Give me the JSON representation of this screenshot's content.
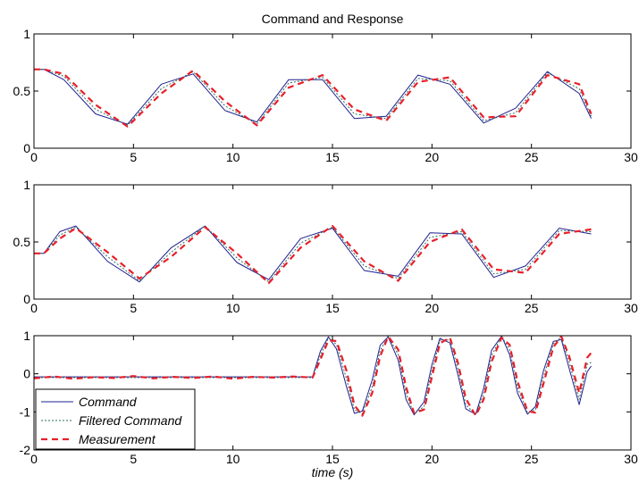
{
  "chart_data": [
    {
      "type": "line",
      "title": "Command and Response",
      "xlim": [
        0,
        30
      ],
      "ylim": [
        0,
        1
      ],
      "xticks": [
        0,
        5,
        10,
        15,
        20,
        25,
        30
      ],
      "yticks": [
        0,
        0.5,
        1
      ],
      "x_tick_labels": [
        "0",
        "5",
        "10",
        "15",
        "20",
        "25",
        "30"
      ],
      "y_tick_labels": [
        "0",
        "0.5",
        "1"
      ],
      "grid": false,
      "series": [
        {
          "name": "Command",
          "color": "#1f1f8f",
          "style": "solid",
          "x": [
            0,
            0.5,
            1.5,
            3.1,
            4.7,
            6.4,
            8.0,
            9.6,
            11.2,
            12.8,
            14.5,
            16.1,
            17.7,
            19.3,
            20.9,
            22.6,
            24.2,
            25.8,
            27.4,
            28
          ],
          "y": [
            0.69,
            0.69,
            0.6,
            0.3,
            0.21,
            0.56,
            0.65,
            0.33,
            0.23,
            0.6,
            0.6,
            0.26,
            0.28,
            0.64,
            0.56,
            0.22,
            0.35,
            0.67,
            0.48,
            0.26
          ]
        },
        {
          "name": "Filtered Command",
          "color": "#2e6b5e",
          "style": "dotted",
          "x": [
            0,
            0.5,
            1.5,
            3.1,
            4.7,
            6.4,
            8.0,
            9.6,
            11.2,
            12.8,
            14.5,
            16.1,
            17.7,
            19.3,
            20.9,
            22.6,
            24.2,
            25.8,
            27.4,
            28
          ],
          "y": [
            0.69,
            0.69,
            0.63,
            0.34,
            0.2,
            0.52,
            0.67,
            0.37,
            0.21,
            0.57,
            0.62,
            0.3,
            0.26,
            0.61,
            0.59,
            0.24,
            0.31,
            0.66,
            0.52,
            0.28
          ]
        },
        {
          "name": "Measurement",
          "color": "#e8202a",
          "style": "dashed",
          "x": [
            0,
            0.5,
            1.5,
            3.1,
            4.7,
            6.4,
            8.0,
            9.6,
            11.2,
            12.8,
            14.5,
            16.1,
            17.7,
            19.3,
            20.9,
            22.6,
            24.2,
            25.8,
            27.4,
            28
          ],
          "y": [
            0.69,
            0.69,
            0.65,
            0.38,
            0.19,
            0.48,
            0.68,
            0.41,
            0.2,
            0.53,
            0.64,
            0.34,
            0.24,
            0.58,
            0.62,
            0.27,
            0.28,
            0.64,
            0.56,
            0.3
          ]
        }
      ]
    },
    {
      "type": "line",
      "xlim": [
        0,
        30
      ],
      "ylim": [
        0,
        1
      ],
      "xticks": [
        0,
        5,
        10,
        15,
        20,
        25,
        30
      ],
      "yticks": [
        0,
        0.5,
        1
      ],
      "x_tick_labels": [
        "0",
        "5",
        "10",
        "15",
        "20",
        "25",
        "30"
      ],
      "y_tick_labels": [
        "0",
        "0.5",
        "1"
      ],
      "grid": false,
      "series": [
        {
          "name": "Command",
          "color": "#1f1f8f",
          "style": "solid",
          "x": [
            0,
            0.5,
            1.3,
            2.1,
            3.7,
            5.3,
            6.9,
            8.6,
            10.2,
            11.8,
            13.4,
            15.0,
            16.6,
            18.3,
            19.9,
            21.5,
            23.1,
            24.7,
            26.4,
            28
          ],
          "y": [
            0.4,
            0.4,
            0.59,
            0.64,
            0.33,
            0.15,
            0.45,
            0.64,
            0.32,
            0.17,
            0.53,
            0.62,
            0.25,
            0.2,
            0.58,
            0.57,
            0.19,
            0.29,
            0.62,
            0.57
          ]
        },
        {
          "name": "Filtered Command",
          "color": "#2e6b5e",
          "style": "dotted",
          "x": [
            0,
            0.5,
            1.3,
            2.1,
            3.7,
            5.3,
            6.9,
            8.6,
            10.2,
            11.8,
            13.4,
            15.0,
            16.6,
            18.3,
            19.9,
            21.5,
            23.1,
            24.7,
            26.4,
            28
          ],
          "y": [
            0.4,
            0.4,
            0.56,
            0.63,
            0.37,
            0.16,
            0.41,
            0.64,
            0.36,
            0.15,
            0.49,
            0.63,
            0.29,
            0.18,
            0.54,
            0.59,
            0.22,
            0.26,
            0.6,
            0.59
          ]
        },
        {
          "name": "Measurement",
          "color": "#e8202a",
          "style": "dashed",
          "x": [
            0,
            0.5,
            1.3,
            2.1,
            3.7,
            5.3,
            6.9,
            8.6,
            10.2,
            11.8,
            13.4,
            15.0,
            16.6,
            18.3,
            19.9,
            21.5,
            23.1,
            24.7,
            26.4,
            28
          ],
          "y": [
            0.4,
            0.4,
            0.53,
            0.62,
            0.41,
            0.18,
            0.37,
            0.63,
            0.4,
            0.14,
            0.45,
            0.64,
            0.33,
            0.16,
            0.5,
            0.61,
            0.26,
            0.23,
            0.57,
            0.61
          ]
        }
      ]
    },
    {
      "type": "line",
      "xlabel": "time (s)",
      "xlim": [
        0,
        30
      ],
      "ylim": [
        -2,
        1
      ],
      "xticks": [
        0,
        5,
        10,
        15,
        20,
        25,
        30
      ],
      "yticks": [
        -2,
        -1,
        0,
        1
      ],
      "x_tick_labels": [
        "0",
        "5",
        "10",
        "15",
        "20",
        "25",
        "30"
      ],
      "y_tick_labels": [
        "-2",
        "-1",
        "0",
        "1"
      ],
      "grid": false,
      "legend": {
        "position": "bottom-left",
        "entries": [
          "Command",
          "Filtered Command",
          "Measurement"
        ]
      },
      "series": [
        {
          "name": "Command",
          "color": "#1f1f8f",
          "style": "solid",
          "x": [
            0,
            14,
            14.4,
            14.8,
            15.2,
            15.7,
            16.1,
            16.5,
            17.0,
            17.4,
            17.8,
            18.3,
            18.7,
            19.1,
            19.6,
            20.0,
            20.4,
            20.9,
            21.3,
            21.7,
            22.2,
            22.6,
            23.0,
            23.5,
            23.9,
            24.3,
            24.8,
            25.2,
            25.6,
            26.1,
            26.5,
            26.9,
            27.4,
            27.8,
            28
          ],
          "y": [
            -0.08,
            -0.08,
            0.6,
            0.97,
            0.65,
            -0.33,
            -1.04,
            -0.98,
            -0.16,
            0.75,
            0.97,
            0.36,
            -0.68,
            -1.08,
            -0.74,
            0.24,
            0.93,
            0.81,
            -0.02,
            -0.92,
            -1.06,
            -0.38,
            0.62,
            0.99,
            0.5,
            -0.51,
            -1.06,
            -0.86,
            0.07,
            0.85,
            0.9,
            0.13,
            -0.81,
            0.05,
            0.2
          ]
        },
        {
          "name": "Filtered Command",
          "color": "#2e6b5e",
          "style": "dotted",
          "x": [
            0,
            14,
            14.4,
            14.8,
            15.2,
            15.7,
            16.1,
            16.5,
            17.0,
            17.4,
            17.8,
            18.3,
            18.7,
            19.1,
            19.6,
            20.0,
            20.4,
            20.9,
            21.3,
            21.7,
            22.2,
            22.6,
            23.0,
            23.5,
            23.9,
            24.3,
            24.8,
            25.2,
            25.6,
            26.1,
            26.5,
            26.9,
            27.4,
            27.8,
            28
          ],
          "y": [
            -0.1,
            -0.1,
            0.49,
            0.94,
            0.77,
            -0.12,
            -0.94,
            -1.05,
            -0.34,
            0.61,
            0.99,
            0.51,
            -0.52,
            -1.06,
            -0.86,
            0.08,
            0.88,
            0.89,
            0.14,
            -0.81,
            -1.08,
            -0.53,
            0.48,
            0.98,
            0.64,
            -0.36,
            -1.02,
            -0.95,
            -0.1,
            0.79,
            0.96,
            0.3,
            -0.67,
            0.25,
            0.3
          ]
        },
        {
          "name": "Measurement",
          "color": "#e8202a",
          "style": "dashed",
          "x": [
            0,
            1.0,
            2.0,
            3.0,
            4.0,
            5.0,
            6.0,
            7.0,
            8.0,
            9.0,
            10.0,
            11.0,
            12.0,
            13.0,
            14,
            14.4,
            14.8,
            15.2,
            15.7,
            16.1,
            16.5,
            17.0,
            17.4,
            17.8,
            18.3,
            18.7,
            19.1,
            19.6,
            20.0,
            20.4,
            20.9,
            21.3,
            21.7,
            22.2,
            22.6,
            23.0,
            23.5,
            23.9,
            24.3,
            24.8,
            25.2,
            25.6,
            26.1,
            26.5,
            26.9,
            27.4,
            27.8,
            28
          ],
          "y": [
            -0.12,
            -0.07,
            -0.13,
            -0.09,
            -0.11,
            -0.06,
            -0.12,
            -0.08,
            -0.11,
            -0.07,
            -0.13,
            -0.08,
            -0.1,
            -0.07,
            -0.1,
            0.38,
            0.88,
            0.86,
            0.09,
            -0.82,
            -1.1,
            -0.5,
            0.46,
            0.98,
            0.64,
            -0.35,
            -1.03,
            -0.94,
            -0.08,
            0.8,
            0.95,
            0.3,
            -0.65,
            -1.1,
            -0.67,
            0.32,
            0.95,
            0.76,
            -0.2,
            -0.98,
            -1.02,
            -0.27,
            0.7,
            0.98,
            0.45,
            -0.5,
            0.42,
            0.55
          ]
        }
      ]
    }
  ]
}
